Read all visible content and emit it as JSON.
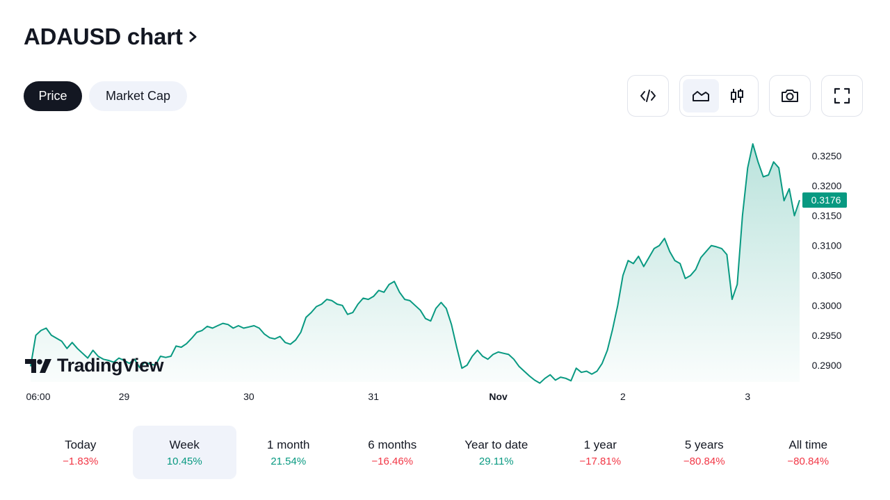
{
  "header": {
    "title": "ADAUSD chart"
  },
  "tabs": [
    {
      "label": "Price",
      "active": true
    },
    {
      "label": "Market Cap",
      "active": false
    }
  ],
  "toolbar": {
    "icons": [
      "embed-code-icon",
      "area-chart-icon",
      "candlestick-chart-icon",
      "camera-icon",
      "fullscreen-icon"
    ],
    "selected": "area-chart-icon"
  },
  "branding": {
    "logo_text": "TradingView"
  },
  "colors": {
    "line": "#089981",
    "negative": "#f23645",
    "positive": "#089981",
    "dark": "#131722",
    "soft_bg": "#f0f3fa"
  },
  "chart_data": {
    "type": "area",
    "x_ticks": [
      {
        "label": "06:00",
        "x": 0
      },
      {
        "label": "29",
        "x": 18
      },
      {
        "label": "30",
        "x": 42
      },
      {
        "label": "31",
        "x": 66
      },
      {
        "label": "Nov",
        "x": 90
      },
      {
        "label": "2",
        "x": 114
      },
      {
        "label": "3",
        "x": 138
      }
    ],
    "y_ticks": [
      0.29,
      0.295,
      0.3,
      0.305,
      0.31,
      0.315,
      0.32,
      0.325
    ],
    "ylim": [
      0.2872,
      0.329
    ],
    "xlim": [
      0,
      148
    ],
    "last_price": 0.3176,
    "series": [
      {
        "x": [
          0,
          1,
          2,
          3,
          4,
          5,
          6,
          7,
          8,
          9,
          10,
          11,
          12,
          13,
          14,
          15,
          16,
          17,
          18,
          19,
          20,
          21,
          22,
          23,
          24,
          25,
          26,
          27,
          28,
          29,
          30,
          31,
          32,
          33,
          34,
          35,
          36,
          37,
          38,
          39,
          40,
          41,
          42,
          43,
          44,
          45,
          46,
          47,
          48,
          49,
          50,
          51,
          52,
          53,
          54,
          55,
          56,
          57,
          58,
          59,
          60,
          61,
          62,
          63,
          64,
          65,
          66,
          67,
          68,
          69,
          70,
          71,
          72,
          73,
          74,
          75,
          76,
          77,
          78,
          79,
          80,
          81,
          82,
          83,
          84,
          85,
          86,
          87,
          88,
          89,
          90,
          91,
          92,
          93,
          94,
          95,
          96,
          97,
          98,
          99,
          100,
          101,
          102,
          103,
          104,
          105,
          106,
          107,
          108,
          109,
          110,
          111,
          112,
          113,
          114,
          115,
          116,
          117,
          118,
          119,
          120,
          121,
          122,
          123,
          124,
          125,
          126,
          127,
          128,
          129,
          130,
          131,
          132,
          133,
          134,
          135,
          136,
          137,
          138,
          139,
          140,
          141,
          142,
          143,
          144,
          145,
          146,
          147,
          148
        ],
        "y": [
          0.2898,
          0.295,
          0.2958,
          0.2962,
          0.295,
          0.2945,
          0.294,
          0.2928,
          0.2938,
          0.2928,
          0.292,
          0.2912,
          0.2925,
          0.2915,
          0.291,
          0.2908,
          0.2905,
          0.2912,
          0.2908,
          0.2903,
          0.291,
          0.2896,
          0.2905,
          0.2902,
          0.29,
          0.2915,
          0.2913,
          0.2915,
          0.2932,
          0.293,
          0.2936,
          0.2945,
          0.2955,
          0.2958,
          0.2965,
          0.2962,
          0.2966,
          0.297,
          0.2968,
          0.2962,
          0.2966,
          0.2962,
          0.2964,
          0.2966,
          0.2962,
          0.2952,
          0.2946,
          0.2944,
          0.2948,
          0.2938,
          0.2935,
          0.2942,
          0.2955,
          0.298,
          0.2988,
          0.2998,
          0.3002,
          0.301,
          0.3008,
          0.3002,
          0.3,
          0.2985,
          0.2988,
          0.3002,
          0.3012,
          0.301,
          0.3015,
          0.3025,
          0.3022,
          0.3035,
          0.304,
          0.3022,
          0.301,
          0.3008,
          0.3,
          0.2992,
          0.2978,
          0.2974,
          0.2995,
          0.3005,
          0.2995,
          0.2968,
          0.293,
          0.2895,
          0.29,
          0.2915,
          0.2925,
          0.2915,
          0.291,
          0.2918,
          0.2922,
          0.292,
          0.2918,
          0.291,
          0.2898,
          0.289,
          0.2882,
          0.2875,
          0.287,
          0.2878,
          0.2884,
          0.2875,
          0.288,
          0.2878,
          0.2874,
          0.2895,
          0.2888,
          0.289,
          0.2885,
          0.289,
          0.2903,
          0.2925,
          0.296,
          0.3,
          0.305,
          0.3075,
          0.307,
          0.3082,
          0.3065,
          0.308,
          0.3095,
          0.31,
          0.3112,
          0.309,
          0.3075,
          0.307,
          0.3045,
          0.305,
          0.306,
          0.308,
          0.309,
          0.31,
          0.3098,
          0.3095,
          0.3085,
          0.301,
          0.3035,
          0.315,
          0.323,
          0.327,
          0.324,
          0.3215,
          0.3218,
          0.324,
          0.323,
          0.3175,
          0.3195,
          0.315,
          0.3176
        ]
      }
    ]
  },
  "periods": [
    {
      "label": "Today",
      "value": "−1.83%",
      "sign": "neg",
      "selected": false
    },
    {
      "label": "Week",
      "value": "10.45%",
      "sign": "pos",
      "selected": true
    },
    {
      "label": "1 month",
      "value": "21.54%",
      "sign": "pos",
      "selected": false
    },
    {
      "label": "6 months",
      "value": "−16.46%",
      "sign": "neg",
      "selected": false
    },
    {
      "label": "Year to date",
      "value": "29.11%",
      "sign": "pos",
      "selected": false
    },
    {
      "label": "1 year",
      "value": "−17.81%",
      "sign": "neg",
      "selected": false
    },
    {
      "label": "5 years",
      "value": "−80.84%",
      "sign": "neg",
      "selected": false
    },
    {
      "label": "All time",
      "value": "−80.84%",
      "sign": "neg",
      "selected": false
    }
  ]
}
